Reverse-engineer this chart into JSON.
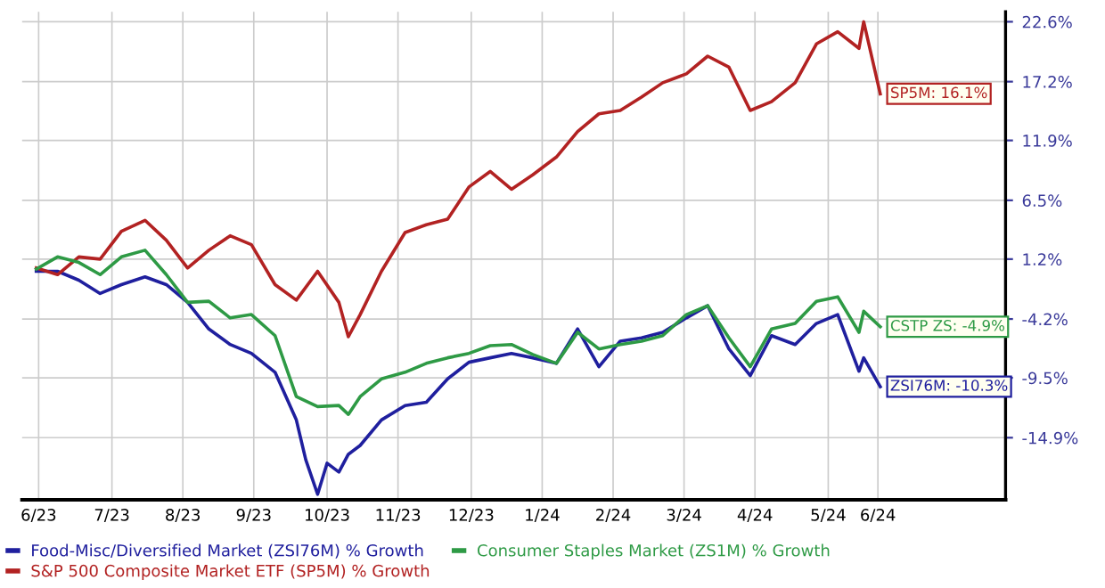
{
  "chart_data": {
    "type": "line",
    "series": [
      {
        "name": "Food-Misc/Diversified Market (ZSI76M) % Growth",
        "color": "#1f1f9e",
        "x": [
          "2023-06-14",
          "2023-06-23",
          "2023-07-02",
          "2023-07-11",
          "2023-07-20",
          "2023-07-30",
          "2023-08-08",
          "2023-08-17",
          "2023-08-26",
          "2023-09-04",
          "2023-09-13",
          "2023-09-23",
          "2023-10-02",
          "2023-10-06",
          "2023-10-11",
          "2023-10-15",
          "2023-10-20",
          "2023-10-24",
          "2023-10-29",
          "2023-11-07",
          "2023-11-17",
          "2023-11-26",
          "2023-12-05",
          "2023-12-14",
          "2023-12-23",
          "2024-01-01",
          "2024-01-10",
          "2024-01-20",
          "2024-01-29",
          "2024-02-07",
          "2024-02-16",
          "2024-02-25",
          "2024-03-05",
          "2024-03-15",
          "2024-03-24",
          "2024-04-02",
          "2024-04-11",
          "2024-04-20",
          "2024-04-30",
          "2024-05-09",
          "2024-05-18",
          "2024-05-27",
          "2024-05-29",
          "2024-06-05"
        ],
        "values": [
          0.1,
          0.1,
          -0.7,
          -1.9,
          -1.1,
          -0.4,
          -1.1,
          -2.7,
          -5.1,
          -6.5,
          -7.3,
          -9.0,
          -13.3,
          -16.9,
          -20.0,
          -17.2,
          -18.0,
          -16.4,
          -15.6,
          -13.3,
          -12.0,
          -11.7,
          -9.6,
          -8.1,
          -7.7,
          -7.3,
          -7.7,
          -8.2,
          -5.1,
          -8.5,
          -6.2,
          -5.9,
          -5.4,
          -4.1,
          -3.0,
          -6.9,
          -9.3,
          -5.7,
          -6.5,
          -4.6,
          -3.8,
          -8.9,
          -7.7,
          -10.3
        ]
      },
      {
        "name": "S&P 500 Composite Market ETF (SP5M) % Growth",
        "color": "#b22222",
        "x": [
          "2023-06-14",
          "2023-06-23",
          "2023-07-02",
          "2023-07-11",
          "2023-07-20",
          "2023-07-30",
          "2023-08-08",
          "2023-08-17",
          "2023-08-26",
          "2023-09-04",
          "2023-09-13",
          "2023-09-23",
          "2023-10-02",
          "2023-10-11",
          "2023-10-20",
          "2023-10-24",
          "2023-10-29",
          "2023-11-07",
          "2023-11-17",
          "2023-11-26",
          "2023-12-05",
          "2023-12-14",
          "2023-12-23",
          "2024-01-01",
          "2024-01-10",
          "2024-01-20",
          "2024-01-29",
          "2024-02-07",
          "2024-02-16",
          "2024-02-25",
          "2024-03-05",
          "2024-03-15",
          "2024-03-24",
          "2024-04-02",
          "2024-04-11",
          "2024-04-20",
          "2024-04-30",
          "2024-05-09",
          "2024-05-18",
          "2024-05-27",
          "2024-05-29",
          "2024-06-05"
        ],
        "values": [
          0.4,
          -0.2,
          1.4,
          1.2,
          3.7,
          4.7,
          2.9,
          0.4,
          2.0,
          3.3,
          2.5,
          -1.1,
          -2.5,
          0.1,
          -2.7,
          -5.8,
          -3.8,
          0.1,
          3.6,
          4.3,
          4.8,
          7.7,
          9.1,
          7.5,
          8.8,
          10.4,
          12.7,
          14.3,
          14.6,
          15.8,
          17.1,
          17.9,
          19.5,
          18.5,
          14.6,
          15.4,
          17.1,
          20.6,
          21.7,
          20.2,
          22.6,
          16.1
        ]
      },
      {
        "name": "Consumer Staples Market (ZS1M) % Growth",
        "color": "#2e9a45",
        "x": [
          "2023-06-14",
          "2023-06-23",
          "2023-07-02",
          "2023-07-11",
          "2023-07-20",
          "2023-07-30",
          "2023-08-08",
          "2023-08-17",
          "2023-08-26",
          "2023-09-04",
          "2023-09-13",
          "2023-09-23",
          "2023-10-02",
          "2023-10-11",
          "2023-10-20",
          "2023-10-24",
          "2023-10-29",
          "2023-11-07",
          "2023-11-17",
          "2023-11-26",
          "2023-12-05",
          "2023-12-14",
          "2023-12-23",
          "2024-01-01",
          "2024-01-10",
          "2024-01-20",
          "2024-01-29",
          "2024-02-07",
          "2024-02-16",
          "2024-02-25",
          "2024-03-05",
          "2024-03-15",
          "2024-03-24",
          "2024-04-02",
          "2024-04-11",
          "2024-04-20",
          "2024-04-30",
          "2024-05-09",
          "2024-05-18",
          "2024-05-27",
          "2024-05-29",
          "2024-06-05"
        ],
        "values": [
          0.3,
          1.4,
          0.9,
          -0.2,
          1.4,
          2.0,
          -0.2,
          -2.7,
          -2.6,
          -4.1,
          -3.8,
          -5.7,
          -11.2,
          -12.1,
          -12.0,
          -12.8,
          -11.2,
          -9.6,
          -9.0,
          -8.2,
          -7.7,
          -7.3,
          -6.6,
          -6.5,
          -7.4,
          -8.2,
          -5.4,
          -6.9,
          -6.5,
          -6.2,
          -5.7,
          -3.8,
          -3.0,
          -5.9,
          -8.5,
          -5.1,
          -4.6,
          -2.6,
          -2.2,
          -5.4,
          -3.5,
          -4.9
        ]
      }
    ],
    "annotations": [
      {
        "text": "SP5M: 16.1%",
        "x": "2024-06-05",
        "y": 16.1
      },
      {
        "text": "CSTP ZS: -4.9%",
        "x": "2024-06-05",
        "y": -4.9
      },
      {
        "text": "ZSI76M: -10.3%",
        "x": "2024-06-05",
        "y": -10.3
      }
    ],
    "xlim": [
      "2023-06-08",
      "2024-07-28"
    ],
    "xticks": [
      {
        "value": "2023-06-15",
        "label": "6/23"
      },
      {
        "value": "2023-07-16",
        "label": "7/23"
      },
      {
        "value": "2023-08-15",
        "label": "8/23"
      },
      {
        "value": "2023-09-14",
        "label": "9/23"
      },
      {
        "value": "2023-10-15",
        "label": "10/23"
      },
      {
        "value": "2023-11-14",
        "label": "11/23"
      },
      {
        "value": "2023-12-15",
        "label": "12/23"
      },
      {
        "value": "2024-01-14",
        "label": "1/24"
      },
      {
        "value": "2024-02-13",
        "label": "2/24"
      },
      {
        "value": "2024-03-14",
        "label": "3/24"
      },
      {
        "value": "2024-04-13",
        "label": "4/24"
      },
      {
        "value": "2024-05-14",
        "label": "5/24"
      },
      {
        "value": "2024-06-04",
        "label": "6/24"
      }
    ],
    "ylim": [
      -20.5,
      23.5
    ],
    "yticks": [
      {
        "value": 22.6,
        "label": "22.6%"
      },
      {
        "value": 17.2,
        "label": "17.2%"
      },
      {
        "value": 11.9,
        "label": "11.9%"
      },
      {
        "value": 6.5,
        "label": "6.5%"
      },
      {
        "value": 1.2,
        "label": "1.2%"
      },
      {
        "value": -4.2,
        "label": "-4.2%"
      },
      {
        "value": -9.5,
        "label": "-9.5%"
      },
      {
        "value": -14.9,
        "label": "-14.9%"
      }
    ],
    "grid": true,
    "legend": "bottom",
    "marker": "none",
    "line_style": "solid"
  }
}
